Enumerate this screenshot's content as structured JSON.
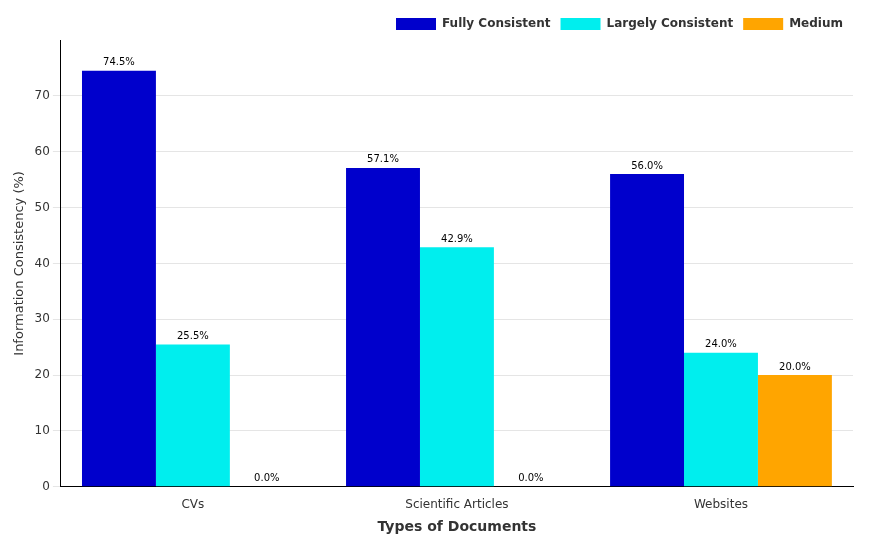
{
  "chart_data": {
    "type": "bar",
    "categories": [
      "CVs",
      "Scientific Articles",
      "Websites"
    ],
    "series": [
      {
        "name": "Fully Consistent",
        "color": "#0000CC",
        "values": [
          74.5,
          57.1,
          56.0
        ],
        "value_labels": [
          "74.5%",
          "57.1%",
          "56.0%"
        ]
      },
      {
        "name": "Largely Consistent",
        "color": "#00EEEE",
        "values": [
          25.5,
          42.9,
          24.0
        ],
        "value_labels": [
          "25.5%",
          "42.9%",
          "24.0%"
        ]
      },
      {
        "name": "Medium",
        "color": "#FFA500",
        "values": [
          0.0,
          0.0,
          20.0
        ],
        "value_labels": [
          "0.0%",
          "0.0%",
          "20.0%"
        ]
      }
    ],
    "xlabel": "Types of Documents",
    "ylabel": "Information Consistency (%)",
    "ylim": [
      0,
      80
    ],
    "yticks": [
      0,
      10,
      20,
      30,
      40,
      50,
      60,
      70
    ],
    "grid": true,
    "legend": "upper right",
    "data_labels": true
  }
}
